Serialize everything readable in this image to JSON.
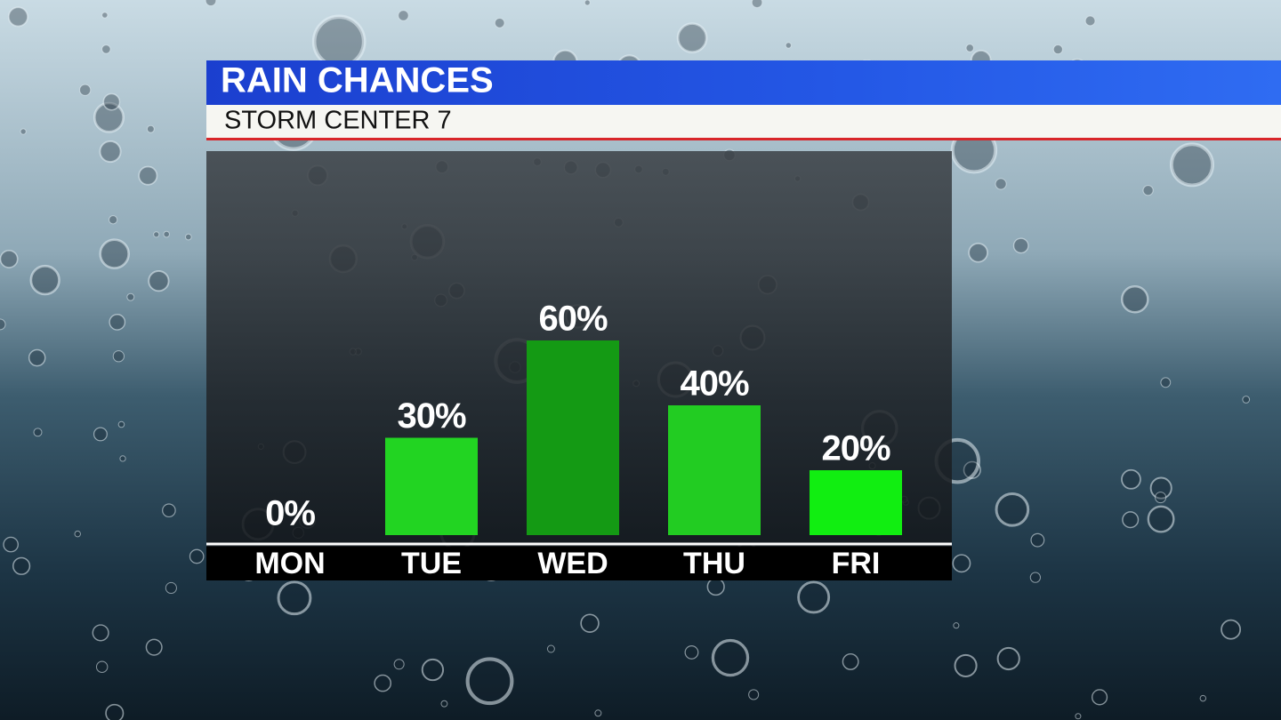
{
  "chart_data": {
    "type": "bar",
    "title": "RAIN CHANCES",
    "subtitle": "STORM CENTER 7",
    "categories": [
      "MON",
      "TUE",
      "WED",
      "THU",
      "FRI"
    ],
    "values": [
      0,
      30,
      60,
      40,
      20
    ],
    "value_labels": [
      "0%",
      "30%",
      "60%",
      "40%",
      "20%"
    ],
    "colors": [
      "#22d422",
      "#22d422",
      "#149a14",
      "#22cc22",
      "#11ee11"
    ]
  }
}
